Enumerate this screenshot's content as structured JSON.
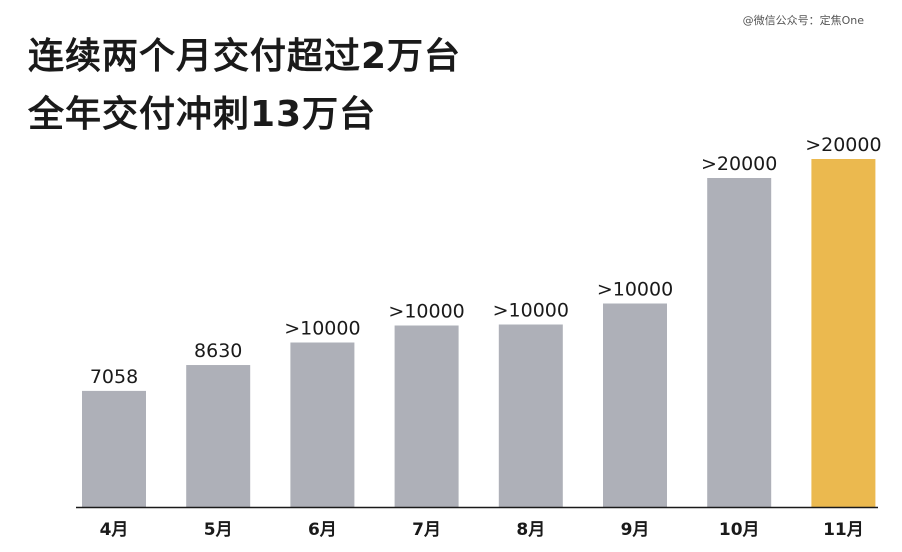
{
  "watermark": "@微信公众号：定焦One",
  "chart_data": {
    "type": "bar",
    "title": [
      "连续两个月交付超过2万台",
      "全年交付冲刺13万台"
    ],
    "categories": [
      "4月",
      "5月",
      "6月",
      "7月",
      "8月",
      "9月",
      "10月",
      "11月"
    ],
    "values": [
      7058,
      8630,
      10000,
      10000,
      10000,
      10000,
      20000,
      20000
    ],
    "value_labels": [
      "7058",
      "8630",
      ">10000",
      ">10000",
      ">10000",
      ">10000",
      ">20000",
      ">20000"
    ],
    "highlight_index": 7,
    "colors": {
      "bar": "#aeb0b8",
      "highlight": "#ebb94f",
      "axis": "#1a1a1a"
    },
    "ylim": [
      0,
      20000
    ],
    "grid": false,
    "legend": "none"
  }
}
